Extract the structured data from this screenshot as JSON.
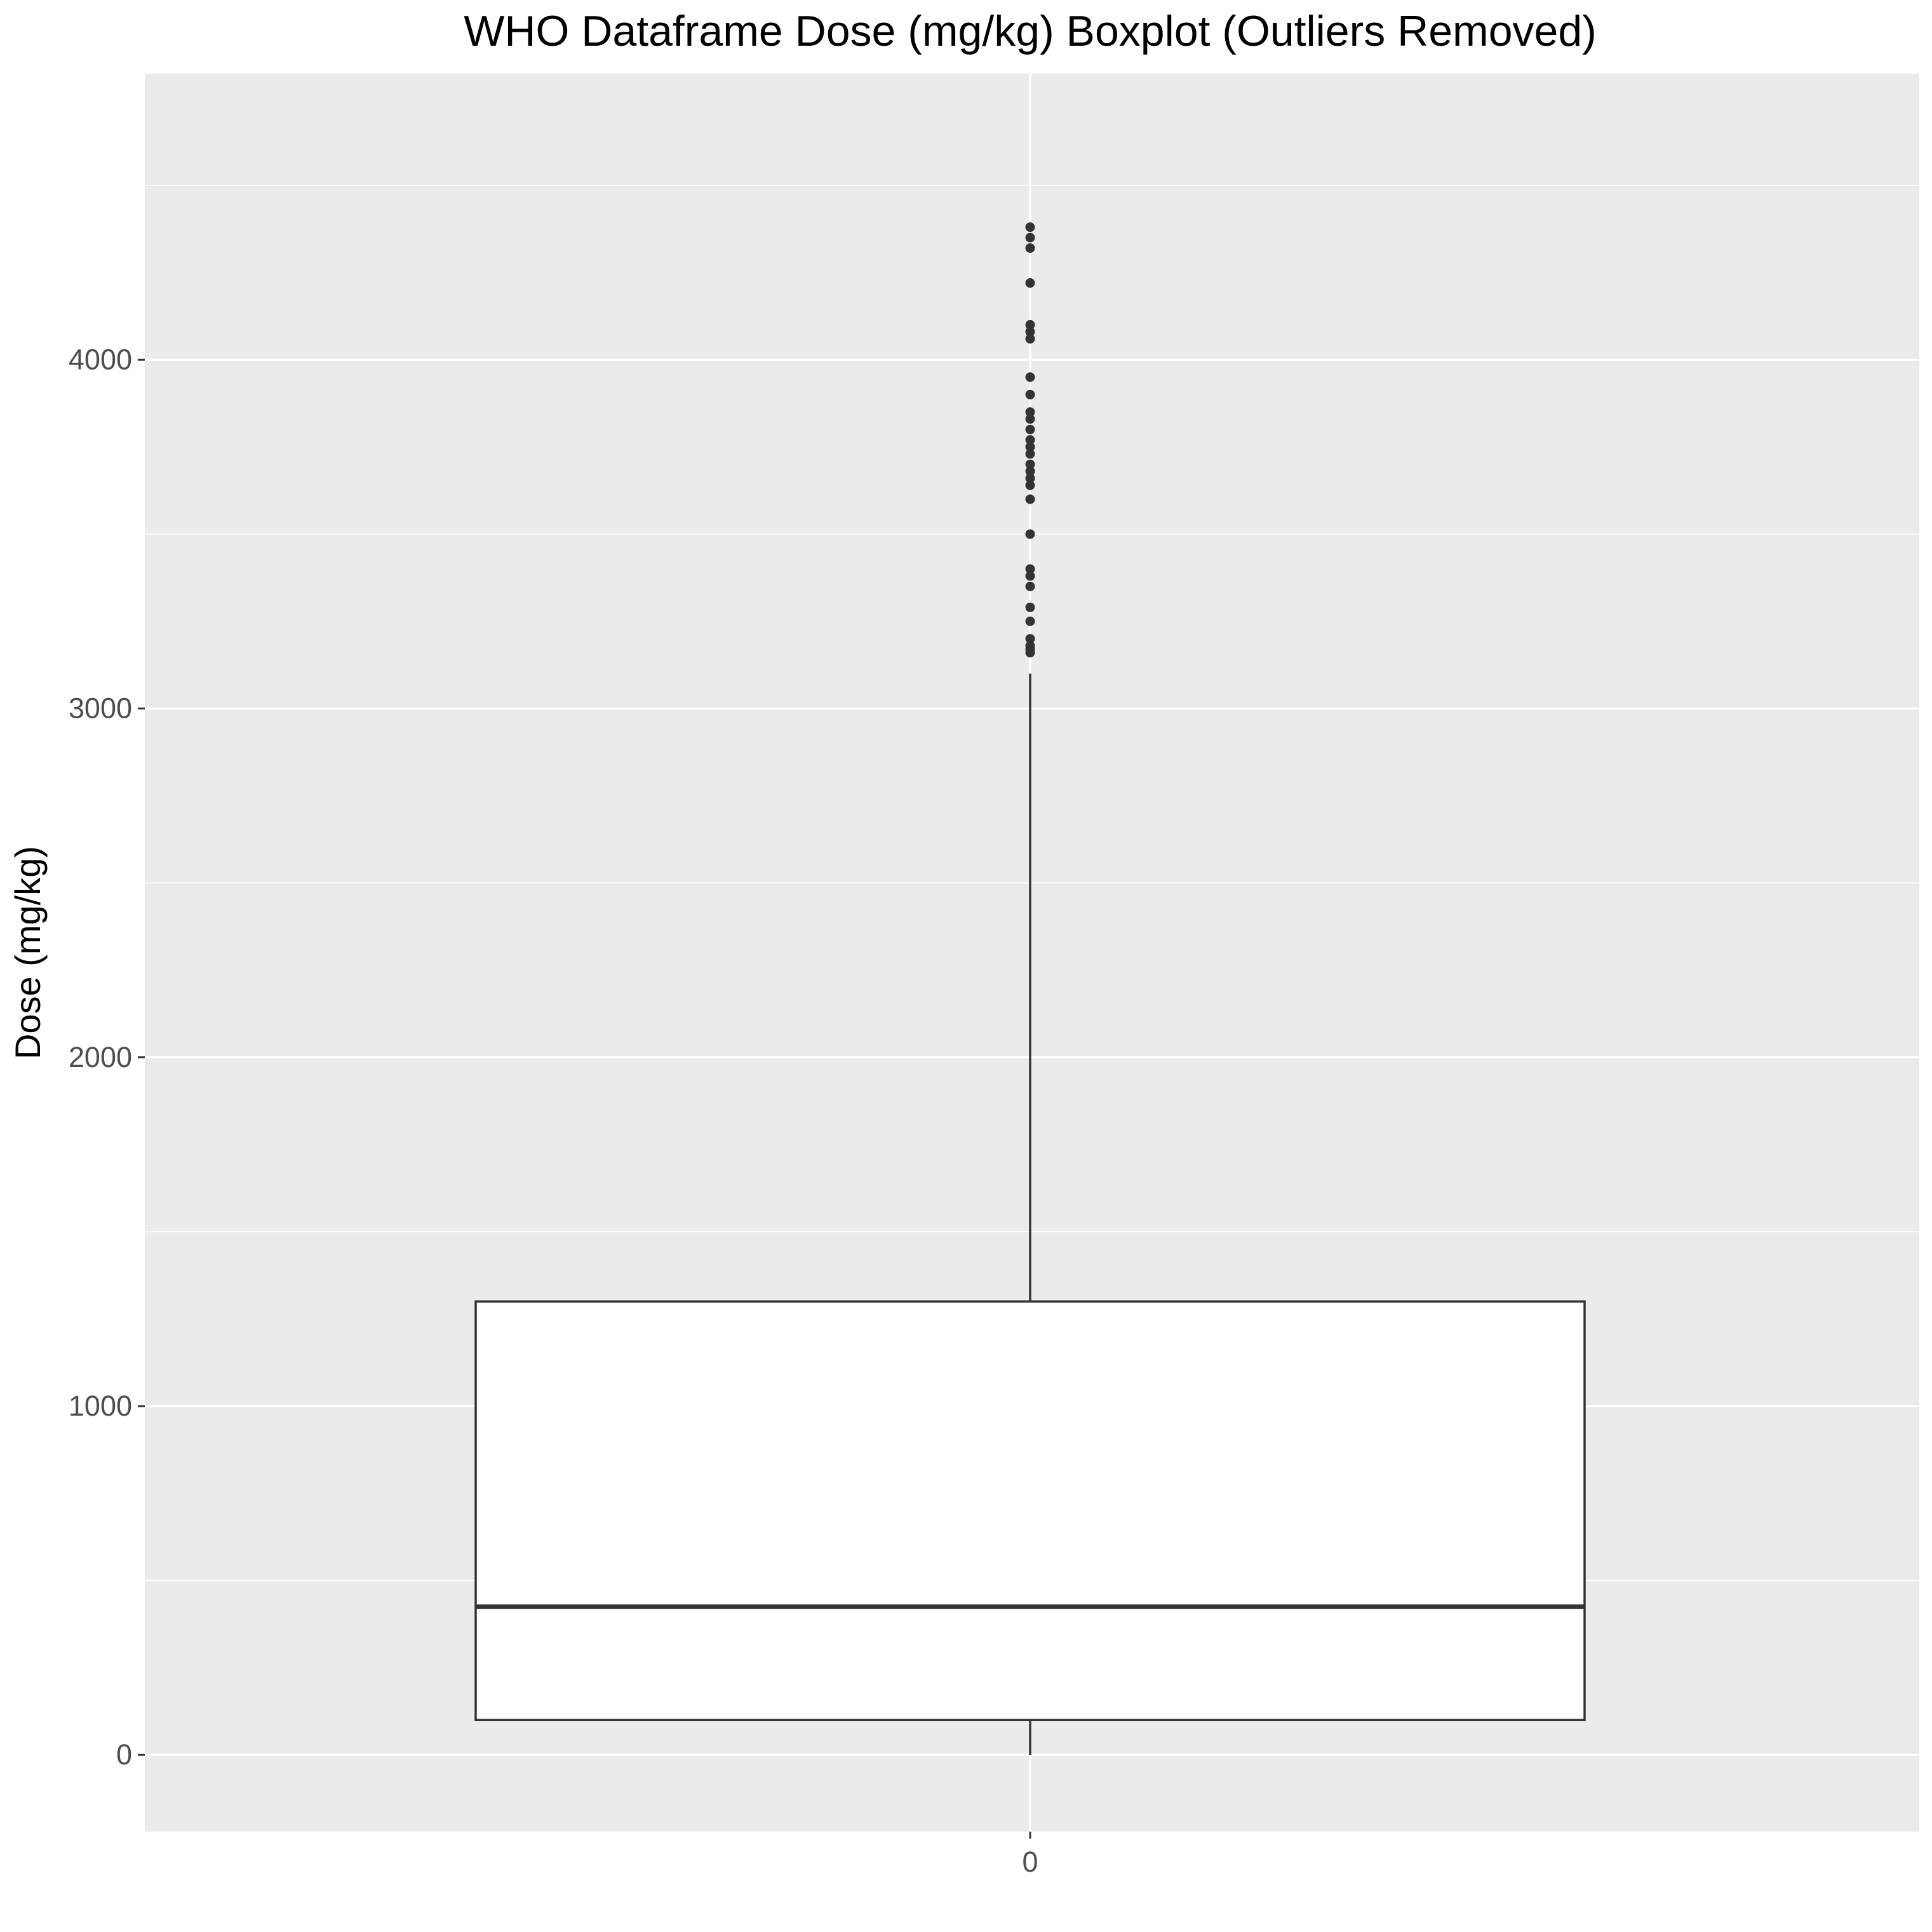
{
  "chart_data": {
    "type": "boxplot",
    "title": "WHO Dataframe Dose (mg/kg) Boxplot (Outliers Removed)",
    "xlabel": "",
    "ylabel": "Dose (mg/kg)",
    "categories": [
      "0"
    ],
    "ylim": [
      -220,
      4820
    ],
    "y_ticks": [
      0,
      1000,
      2000,
      3000,
      4000
    ],
    "y_tick_labels": [
      "0",
      "1000",
      "2000",
      "3000",
      "4000"
    ],
    "y_minor_ticks": [
      500,
      1500,
      2500,
      3500,
      4500
    ],
    "grid": true,
    "legend": "none",
    "box": {
      "whisker_low": 0,
      "q1": 100,
      "median": 425,
      "q3": 1300,
      "whisker_high": 3100
    },
    "outliers": [
      4380,
      4350,
      4320,
      4220,
      4100,
      4080,
      4060,
      3950,
      3900,
      3850,
      3830,
      3800,
      3770,
      3750,
      3730,
      3700,
      3680,
      3660,
      3640,
      3600,
      3500,
      3400,
      3380,
      3350,
      3290,
      3250,
      3200,
      3180,
      3170,
      3160
    ],
    "colors": {
      "panel_background": "#ebebeb",
      "grid": "#ffffff",
      "box_fill": "#ffffff",
      "box_stroke": "#333333",
      "tick_label": "#4d4d4d"
    }
  }
}
